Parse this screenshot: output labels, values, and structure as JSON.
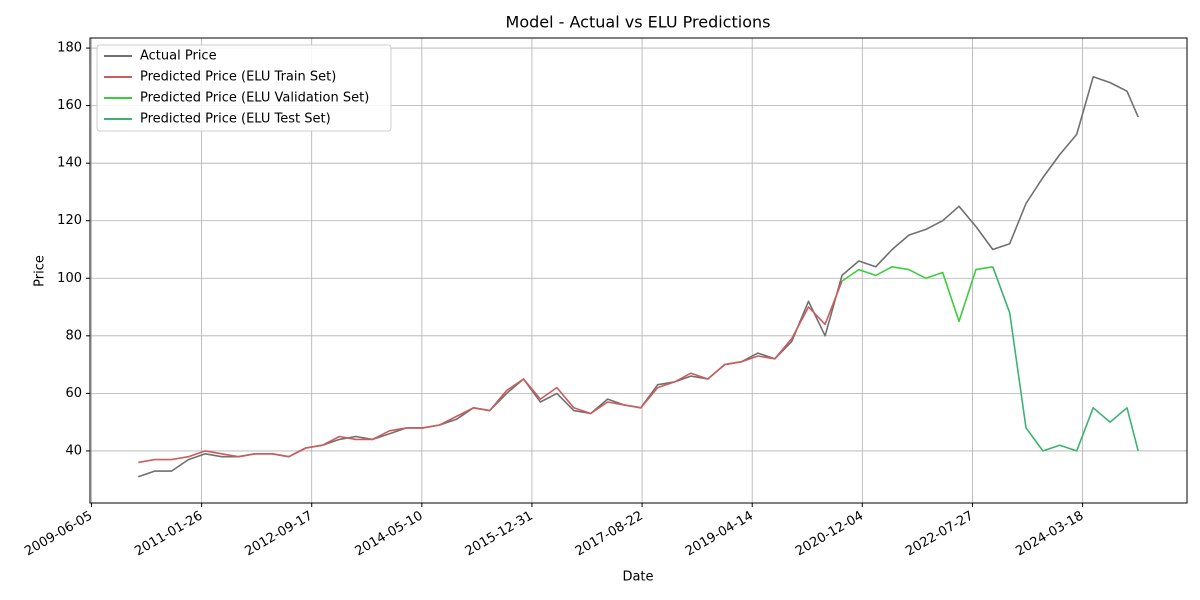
{
  "chart_data": {
    "type": "line",
    "title": "Model - Actual vs ELU Predictions",
    "x_label": "Date",
    "y_label": "Price",
    "x": [
      "2010-02-15",
      "2010-05-15",
      "2010-08-15",
      "2010-11-15",
      "2011-02-15",
      "2011-05-15",
      "2011-08-15",
      "2011-11-15",
      "2012-02-15",
      "2012-05-15",
      "2012-08-15",
      "2012-11-15",
      "2013-02-15",
      "2013-05-15",
      "2013-08-15",
      "2013-11-15",
      "2014-02-15",
      "2014-05-15",
      "2014-08-15",
      "2014-11-15",
      "2015-02-15",
      "2015-05-15",
      "2015-08-15",
      "2015-11-15",
      "2016-02-15",
      "2016-05-15",
      "2016-08-15",
      "2016-11-15",
      "2017-02-15",
      "2017-05-15",
      "2017-08-15",
      "2017-11-15",
      "2018-02-15",
      "2018-05-15",
      "2018-08-15",
      "2018-11-15",
      "2019-02-15",
      "2019-05-15",
      "2019-08-15",
      "2019-11-15",
      "2020-02-15",
      "2020-05-15",
      "2020-08-15",
      "2020-11-15",
      "2021-02-15",
      "2021-05-15",
      "2021-08-15",
      "2021-11-15",
      "2022-02-15",
      "2022-05-15",
      "2022-08-15",
      "2022-11-15",
      "2023-02-15",
      "2023-05-15",
      "2023-08-15",
      "2023-11-15",
      "2024-02-15",
      "2024-05-15",
      "2024-08-15",
      "2024-11-15",
      "2025-01-15"
    ],
    "series": [
      {
        "name": "Actual Price",
        "color": "#707070",
        "values": [
          31,
          33,
          33,
          37,
          39,
          38,
          38,
          39,
          39,
          38,
          41,
          42,
          44,
          45,
          44,
          46,
          48,
          48,
          49,
          51,
          55,
          54,
          60,
          65,
          57,
          60,
          54,
          53,
          58,
          56,
          55,
          63,
          64,
          66,
          65,
          70,
          71,
          74,
          72,
          78,
          92,
          80,
          101,
          106,
          104,
          110,
          115,
          117,
          120,
          125,
          118,
          110,
          112,
          126,
          135,
          143,
          150,
          170,
          168,
          165,
          156
        ]
      },
      {
        "name": "Predicted Price (ELU Train Set)",
        "color": "#cd5c5c",
        "values": [
          36,
          37,
          37,
          38,
          40,
          39,
          38,
          39,
          39,
          38,
          41,
          42,
          45,
          44,
          44,
          47,
          48,
          48,
          49,
          52,
          55,
          54,
          61,
          65,
          58,
          62,
          55,
          53,
          57,
          56,
          55,
          62,
          64,
          67,
          65,
          70,
          71,
          73,
          72,
          79,
          90,
          84,
          99,
          null,
          null,
          null,
          null,
          null,
          null,
          null,
          null,
          null,
          null,
          null,
          null,
          null,
          null,
          null,
          null,
          null,
          null
        ]
      },
      {
        "name": "Predicted Price (ELU Validation Set)",
        "color": "#3ccd3c",
        "values": [
          null,
          null,
          null,
          null,
          null,
          null,
          null,
          null,
          null,
          null,
          null,
          null,
          null,
          null,
          null,
          null,
          null,
          null,
          null,
          null,
          null,
          null,
          null,
          null,
          null,
          null,
          null,
          null,
          null,
          null,
          null,
          null,
          null,
          null,
          null,
          null,
          null,
          null,
          null,
          null,
          null,
          null,
          99,
          103,
          101,
          104,
          103,
          100,
          102,
          85,
          103,
          104,
          null,
          null,
          null,
          null,
          null,
          null,
          null,
          null,
          null
        ]
      },
      {
        "name": "Predicted Price (ELU Test Set)",
        "color": "#3cb371",
        "values": [
          null,
          null,
          null,
          null,
          null,
          null,
          null,
          null,
          null,
          null,
          null,
          null,
          null,
          null,
          null,
          null,
          null,
          null,
          null,
          null,
          null,
          null,
          null,
          null,
          null,
          null,
          null,
          null,
          null,
          null,
          null,
          null,
          null,
          null,
          null,
          null,
          null,
          null,
          null,
          null,
          null,
          null,
          null,
          null,
          null,
          null,
          null,
          null,
          null,
          null,
          null,
          104,
          88,
          48,
          40,
          42,
          40,
          55,
          50,
          55,
          40
        ]
      }
    ],
    "xlim": [
      "2009-05-28",
      "2025-10-08"
    ],
    "xticks": [
      "2009-06-05",
      "2011-01-26",
      "2012-09-17",
      "2014-05-10",
      "2015-12-31",
      "2017-08-22",
      "2019-04-14",
      "2020-12-04",
      "2022-07-27",
      "2024-03-18"
    ],
    "ylim": [
      21.9,
      183.5
    ],
    "yticks": [
      40,
      60,
      80,
      100,
      120,
      140,
      160,
      180
    ],
    "grid": true,
    "legend": "upper-left"
  }
}
